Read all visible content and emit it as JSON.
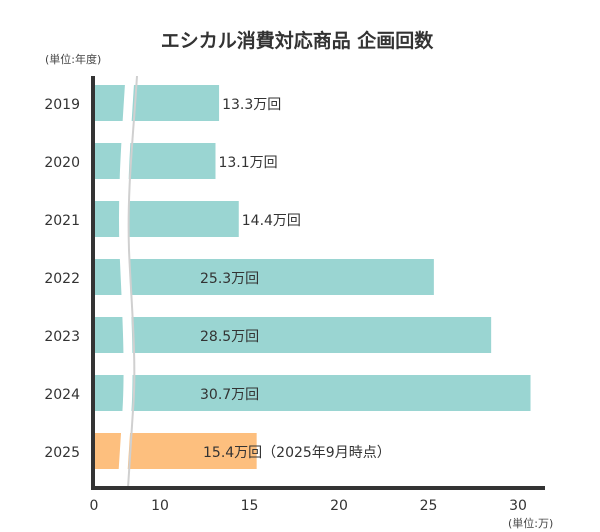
{
  "chart_data": {
    "type": "bar",
    "orientation": "horizontal",
    "title": "エシカル消費対応商品 企画回数",
    "ylabel": "(単位:年度)",
    "xlabel": "(単位:万)",
    "categories": [
      "2019",
      "2020",
      "2021",
      "2022",
      "2023",
      "2024",
      "2025"
    ],
    "values": [
      13.3,
      13.1,
      14.4,
      25.3,
      28.5,
      30.7,
      15.4
    ],
    "data_labels": [
      "13.3万回",
      "13.1万回",
      "14.4万回",
      "25.3万回",
      "28.5万回",
      "30.7万回",
      "15.4万回（2025年9月時点）"
    ],
    "xticks": [
      "0",
      "10",
      "15",
      "20",
      "25",
      "30"
    ],
    "xlim": [
      0,
      32
    ],
    "axis_break": "between 0 and 10",
    "grid": false,
    "colors": {
      "bar": "#9ad5d2",
      "highlight": "#fdbf7e",
      "axis": "#333333",
      "text": "#333333"
    }
  }
}
